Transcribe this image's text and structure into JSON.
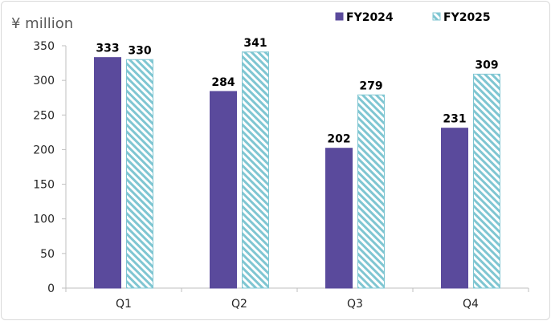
{
  "chart_data": {
    "type": "bar",
    "title": "",
    "ylabel": "¥ million",
    "xlabel": "",
    "categories": [
      "Q1",
      "Q2",
      "Q3",
      "Q4"
    ],
    "series": [
      {
        "name": "FY2024",
        "values": [
          333,
          284,
          202,
          231
        ],
        "color": "#5a4a9c",
        "pattern": "solid"
      },
      {
        "name": "FY2025",
        "values": [
          330,
          341,
          279,
          309
        ],
        "color": "#7fc6d2",
        "pattern": "diagonal-hatch"
      }
    ],
    "ylim": [
      0,
      350
    ],
    "yticks": [
      0,
      50,
      100,
      150,
      200,
      250,
      300,
      350
    ],
    "grid": false,
    "legend_position": "top-right",
    "data_labels": true
  }
}
